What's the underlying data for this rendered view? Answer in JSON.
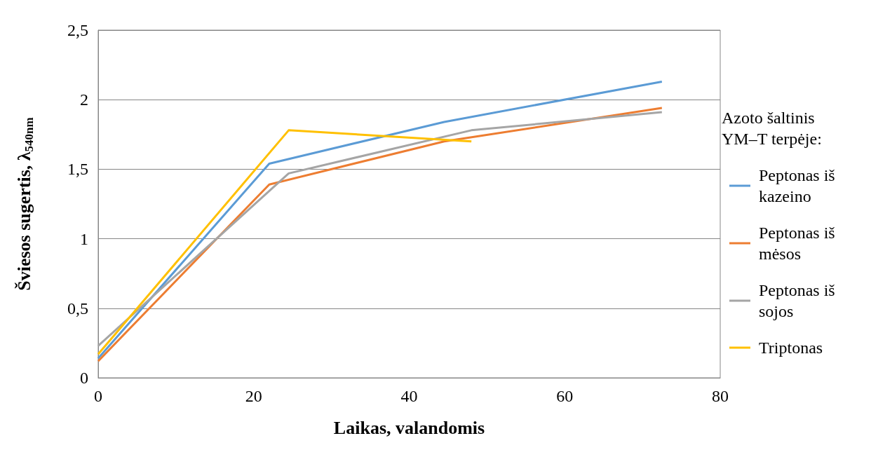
{
  "chart_data": {
    "type": "line",
    "xlabel": "Laikas, valandomis",
    "ylabel": "Šviesos sugertis, λ$_{540nm}$",
    "legend_title": "Azoto šaltinis YM–T terpėje:",
    "series": [
      {
        "name": "Peptonas iš kazeino",
        "color": "#5b9bd5",
        "x": [
          0,
          22,
          44.5,
          72.5
        ],
        "values": [
          0.14,
          1.54,
          1.84,
          2.13
        ]
      },
      {
        "name": "Peptonas iš mėsos",
        "color": "#ed7d31",
        "x": [
          0,
          22,
          44.5,
          72.5
        ],
        "values": [
          0.12,
          1.39,
          1.7,
          1.94
        ]
      },
      {
        "name": "Peptonas iš sojos",
        "color": "#a5a5a5",
        "x": [
          0,
          24.5,
          48,
          72.5
        ],
        "values": [
          0.23,
          1.47,
          1.78,
          1.91
        ]
      },
      {
        "name": "Triptonas",
        "color": "#ffc000",
        "x": [
          0,
          24.5,
          48
        ],
        "values": [
          0.17,
          1.78,
          1.7
        ]
      }
    ],
    "xlim": [
      0,
      80
    ],
    "xticks": [
      0,
      20,
      40,
      60,
      80
    ],
    "ylim": [
      0,
      2.5
    ],
    "yticks": [
      0,
      {
        "value": 0.5,
        "label": "0,5"
      },
      1,
      {
        "value": 1.5,
        "label": "1,5"
      },
      2,
      {
        "value": 2.5,
        "label": "2,5"
      }
    ],
    "grid": "y",
    "legend": "right",
    "marker": "none",
    "line_style": "solid"
  }
}
